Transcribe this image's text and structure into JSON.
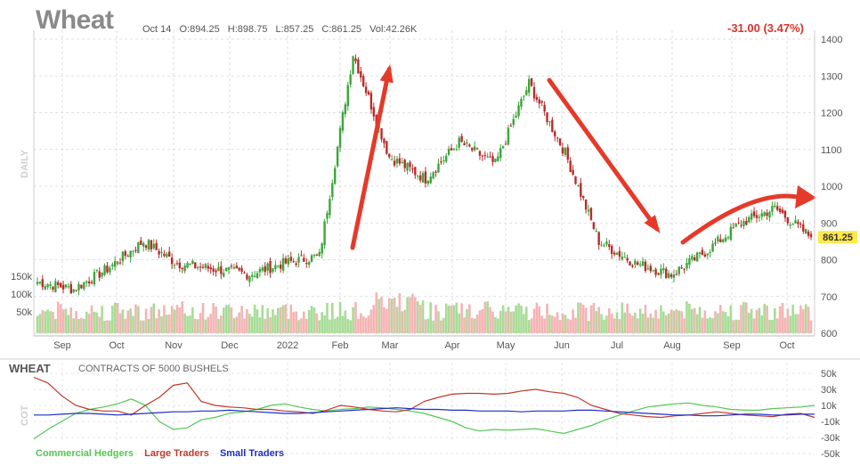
{
  "header": {
    "symbol": "Wheat",
    "date": "Oct 14",
    "open": "O:894.25",
    "high": "H:898.75",
    "low": "L:857.25",
    "close": "C:861.25",
    "volume": "Vol:42.26K",
    "change": "-31.00 (3.47%)",
    "last_price_badge": "861.25"
  },
  "colors": {
    "up": "#3aa63a",
    "down": "#b82b2b",
    "vol_up": "#a8dc96",
    "vol_down": "#f4b4b4",
    "arrow": "#e53a2a",
    "commercial": "#53c853",
    "large": "#c0392b",
    "small": "#1c2fc4",
    "badge": "#ffe84a"
  },
  "chart_data": [
    {
      "type": "candlestick",
      "period_label": "DAILY",
      "ylim": [
        600,
        1400
      ],
      "y_ticks": [
        "1400",
        "1300",
        "1200",
        "1100",
        "1000",
        "900",
        "800",
        "700",
        "600"
      ],
      "x_ticks": [
        "Sep",
        "Oct",
        "Nov",
        "Dec",
        "2022",
        "Feb",
        "Mar",
        "Apr",
        "May",
        "Jun",
        "Jul",
        "Aug",
        "Sep",
        "Oct"
      ],
      "volume_ticks": [
        "150k",
        "100k",
        "50k"
      ],
      "grid": true,
      "price_path": [
        [
          "Sep",
          740
        ],
        [
          "Oct",
          720
        ],
        [
          "Nov",
          775
        ],
        [
          "Nov",
          850
        ],
        [
          "Dec",
          790
        ],
        [
          "Dec",
          775
        ],
        [
          "2022",
          760
        ],
        [
          "Feb",
          790
        ],
        [
          "Feb",
          810
        ],
        [
          "Mar",
          1360
        ],
        [
          "Mar",
          1080
        ],
        [
          "Apr",
          1020
        ],
        [
          "Apr",
          1120
        ],
        [
          "May",
          1060
        ],
        [
          "May",
          1280
        ],
        [
          "Jun",
          1090
        ],
        [
          "Jul",
          850
        ],
        [
          "Aug",
          790
        ],
        [
          "Aug",
          760
        ],
        [
          "Sep",
          820
        ],
        [
          "Sep",
          900
        ],
        [
          "Oct",
          940
        ],
        [
          "Oct",
          861.25
        ]
      ],
      "last_close": 861.25
    },
    {
      "type": "line",
      "title": "WHEAT",
      "subtitle": "CONTRACTS OF 5000 BUSHELS",
      "y_axis_label": "COT",
      "ylim": [
        -50,
        50
      ],
      "y_ticks": [
        "50k",
        "30k",
        "10k",
        "-10k",
        "-30k",
        "-50k"
      ],
      "legend": "bottom-left",
      "series": [
        {
          "name": "Commercial Hedgers",
          "values": [
            -32,
            -20,
            -10,
            0,
            5,
            8,
            12,
            18,
            10,
            -10,
            -20,
            -18,
            -8,
            -5,
            0,
            2,
            5,
            10,
            12,
            8,
            5,
            3,
            5,
            6,
            8,
            7,
            5,
            3,
            0,
            -5,
            -10,
            -18,
            -22,
            -20,
            -21,
            -20,
            -19,
            -22,
            -25,
            -20,
            -15,
            -8,
            -2,
            3,
            8,
            10,
            12,
            13,
            10,
            8,
            5,
            4,
            4,
            6,
            7,
            8,
            10
          ]
        },
        {
          "name": "Large Traders",
          "values": [
            45,
            38,
            22,
            10,
            5,
            3,
            3,
            -2,
            10,
            20,
            35,
            38,
            15,
            10,
            8,
            7,
            5,
            5,
            3,
            2,
            0,
            4,
            10,
            8,
            5,
            3,
            2,
            5,
            15,
            20,
            24,
            25,
            25,
            24,
            25,
            28,
            30,
            27,
            25,
            20,
            10,
            5,
            0,
            -2,
            -4,
            -5,
            -3,
            -2,
            0,
            2,
            0,
            -2,
            -3,
            -4,
            -1,
            0,
            -5
          ]
        },
        {
          "name": "Small Traders",
          "values": [
            -2,
            -2,
            -1,
            0,
            0,
            -1,
            -2,
            -1,
            0,
            1,
            2,
            2,
            3,
            3,
            4,
            3,
            2,
            1,
            0,
            0,
            1,
            2,
            3,
            4,
            5,
            6,
            7,
            6,
            5,
            5,
            4,
            4,
            3,
            3,
            3,
            2,
            3,
            3,
            3,
            4,
            4,
            3,
            2,
            1,
            0,
            -1,
            -2,
            -2,
            -3,
            -3,
            -2,
            -1,
            -1,
            -2,
            -2,
            -1,
            -1
          ]
        }
      ]
    }
  ]
}
